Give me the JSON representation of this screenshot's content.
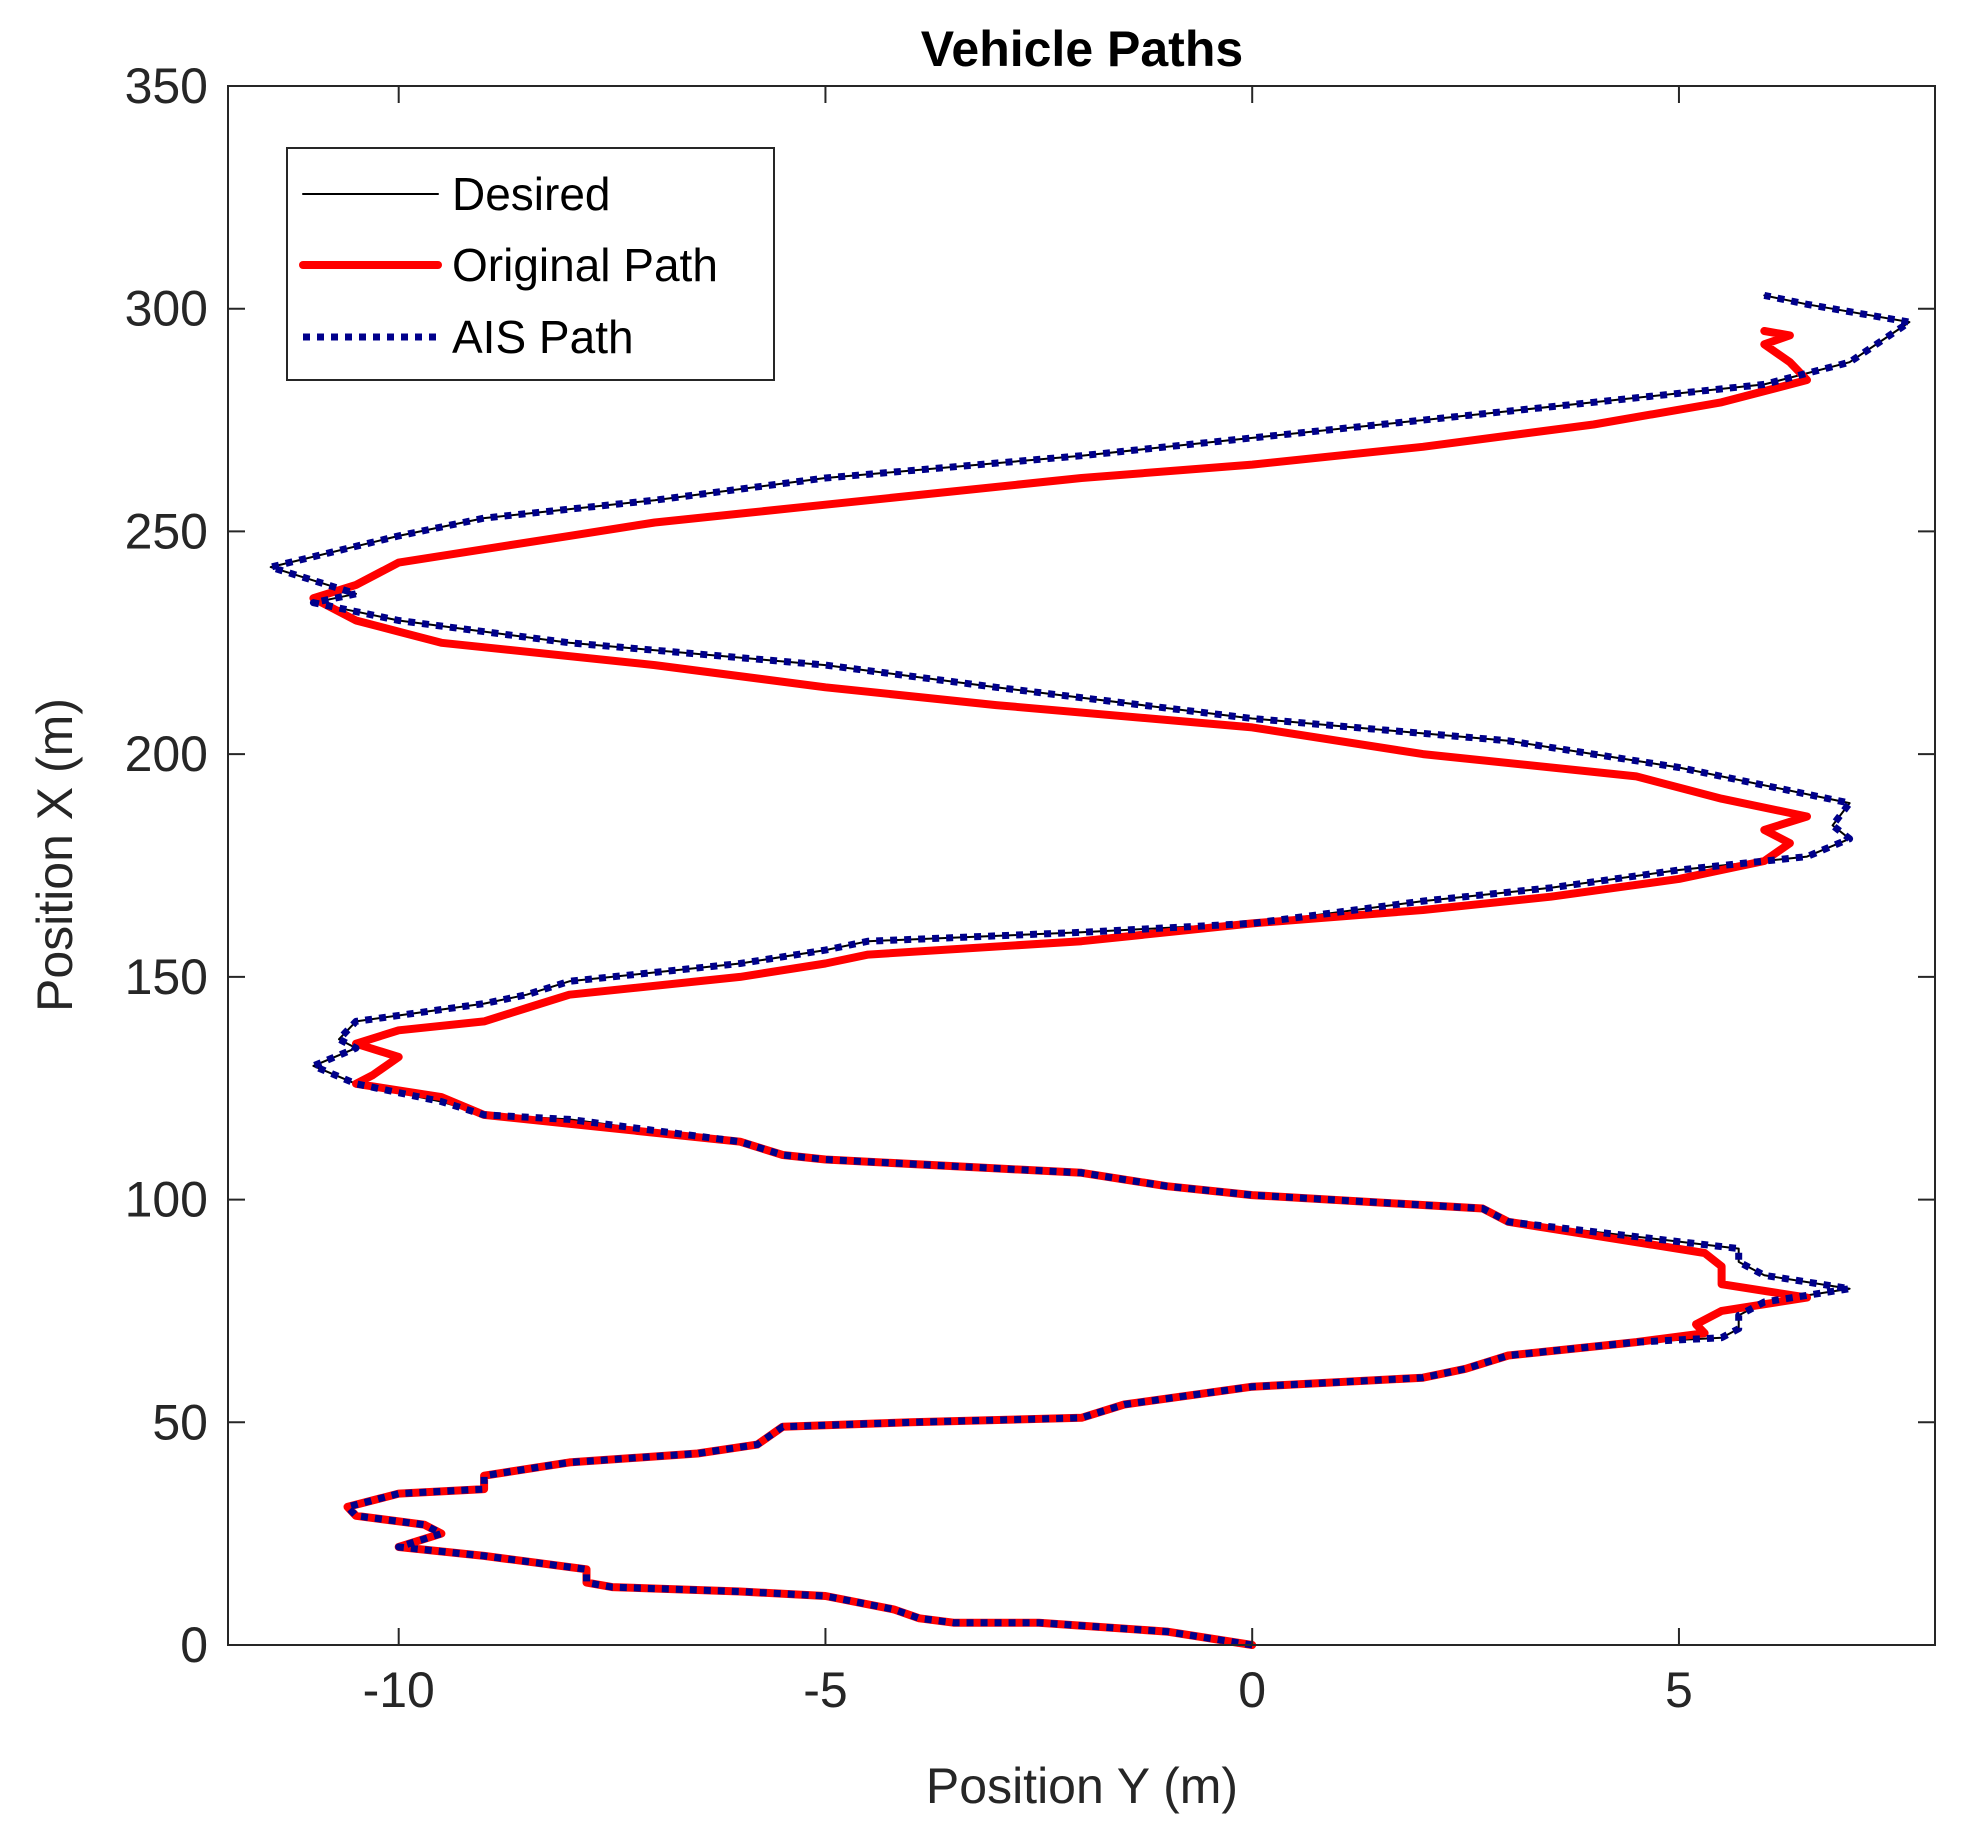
{
  "chart_data": {
    "type": "line",
    "title": "Vehicle Paths",
    "xlabel": "Position Y (m)",
    "ylabel": "Position X (m)",
    "xlim": [
      -12,
      8
    ],
    "ylim": [
      0,
      350
    ],
    "xticks": [
      -10,
      -5,
      0,
      5
    ],
    "yticks": [
      0,
      50,
      100,
      150,
      200,
      250,
      300,
      350
    ],
    "grid": false,
    "legend_position": "top-left",
    "series": [
      {
        "name": "Desired",
        "color": "#000000",
        "style": "solid-thin",
        "points": [
          [
            0.0,
            0
          ],
          [
            -1.0,
            3
          ],
          [
            -2.5,
            5
          ],
          [
            -3.5,
            5
          ],
          [
            -3.9,
            6
          ],
          [
            -4.2,
            8
          ],
          [
            -5.0,
            11
          ],
          [
            -6.0,
            12
          ],
          [
            -7.5,
            13
          ],
          [
            -7.8,
            14
          ],
          [
            -7.8,
            17
          ],
          [
            -9.0,
            20
          ],
          [
            -10.0,
            22
          ],
          [
            -9.5,
            25
          ],
          [
            -9.7,
            27
          ],
          [
            -10.5,
            29
          ],
          [
            -10.6,
            31
          ],
          [
            -10.0,
            34
          ],
          [
            -9.0,
            35
          ],
          [
            -9.0,
            38
          ],
          [
            -8.0,
            41
          ],
          [
            -6.5,
            43
          ],
          [
            -5.8,
            45
          ],
          [
            -5.5,
            49
          ],
          [
            -4.0,
            50
          ],
          [
            -2.0,
            51
          ],
          [
            -1.5,
            54
          ],
          [
            0.0,
            58
          ],
          [
            2.0,
            60
          ],
          [
            2.5,
            62
          ],
          [
            3.0,
            65
          ],
          [
            4.5,
            68
          ],
          [
            5.5,
            69
          ],
          [
            5.7,
            71
          ],
          [
            5.7,
            74
          ],
          [
            6.0,
            77
          ],
          [
            7.0,
            80
          ],
          [
            6.0,
            83
          ],
          [
            5.7,
            86
          ],
          [
            5.7,
            89
          ],
          [
            3.0,
            95
          ],
          [
            2.7,
            98
          ],
          [
            0.0,
            101
          ],
          [
            -1.0,
            103
          ],
          [
            -2.0,
            106
          ],
          [
            -3.0,
            107
          ],
          [
            -5.0,
            109
          ],
          [
            -5.5,
            110
          ],
          [
            -6.0,
            113
          ],
          [
            -8.0,
            118
          ],
          [
            -9.0,
            119
          ],
          [
            -9.5,
            122
          ],
          [
            -10.5,
            126
          ],
          [
            -11.0,
            130
          ],
          [
            -10.5,
            134
          ],
          [
            -10.7,
            136
          ],
          [
            -10.5,
            140
          ],
          [
            -9.0,
            144
          ],
          [
            -8.5,
            146
          ],
          [
            -8.0,
            149
          ],
          [
            -6.0,
            153
          ],
          [
            -5.0,
            156
          ],
          [
            -4.5,
            158
          ],
          [
            -2.0,
            160
          ],
          [
            0.0,
            162
          ],
          [
            2.0,
            167
          ],
          [
            3.5,
            170
          ],
          [
            5.0,
            174
          ],
          [
            6.5,
            177
          ],
          [
            7.0,
            181
          ],
          [
            6.8,
            184
          ],
          [
            7.0,
            189
          ],
          [
            5.0,
            197
          ],
          [
            3.0,
            203
          ],
          [
            0.0,
            208
          ],
          [
            -3.0,
            215
          ],
          [
            -5.0,
            220
          ],
          [
            -8.0,
            225
          ],
          [
            -10.0,
            230
          ],
          [
            -11.0,
            234
          ],
          [
            -10.5,
            236
          ],
          [
            -11.5,
            242
          ],
          [
            -10.0,
            249
          ],
          [
            -9.0,
            253
          ],
          [
            -7.0,
            257
          ],
          [
            -5.0,
            262
          ],
          [
            -2.0,
            267
          ],
          [
            0.0,
            271
          ],
          [
            2.0,
            275
          ],
          [
            4.0,
            279
          ],
          [
            6.0,
            283
          ],
          [
            7.0,
            288
          ],
          [
            7.7,
            297
          ],
          [
            6.5,
            301
          ],
          [
            6.0,
            303
          ]
        ]
      },
      {
        "name": "Original Path",
        "color": "#ff0000",
        "style": "solid-thick",
        "points": [
          [
            0.0,
            0
          ],
          [
            -1.0,
            3
          ],
          [
            -2.5,
            5
          ],
          [
            -3.5,
            5
          ],
          [
            -3.9,
            6
          ],
          [
            -4.2,
            8
          ],
          [
            -5.0,
            11
          ],
          [
            -6.0,
            12
          ],
          [
            -7.5,
            13
          ],
          [
            -7.8,
            14
          ],
          [
            -7.8,
            17
          ],
          [
            -9.0,
            20
          ],
          [
            -10.0,
            22
          ],
          [
            -9.5,
            25
          ],
          [
            -9.7,
            27
          ],
          [
            -10.5,
            29
          ],
          [
            -10.6,
            31
          ],
          [
            -10.0,
            34
          ],
          [
            -9.0,
            35
          ],
          [
            -9.0,
            38
          ],
          [
            -8.0,
            41
          ],
          [
            -6.5,
            43
          ],
          [
            -5.8,
            45
          ],
          [
            -5.5,
            49
          ],
          [
            -4.0,
            50
          ],
          [
            -2.0,
            51
          ],
          [
            -1.5,
            54
          ],
          [
            0.0,
            58
          ],
          [
            2.0,
            60
          ],
          [
            2.5,
            62
          ],
          [
            3.0,
            65
          ],
          [
            4.5,
            68
          ],
          [
            5.3,
            70
          ],
          [
            5.2,
            72
          ],
          [
            5.5,
            75
          ],
          [
            6.5,
            78
          ],
          [
            5.5,
            81
          ],
          [
            5.5,
            85
          ],
          [
            5.3,
            88
          ],
          [
            3.0,
            95
          ],
          [
            2.7,
            98
          ],
          [
            0.0,
            101
          ],
          [
            -1.0,
            103
          ],
          [
            -2.0,
            106
          ],
          [
            -3.0,
            107
          ],
          [
            -5.0,
            109
          ],
          [
            -5.5,
            110
          ],
          [
            -6.0,
            113
          ],
          [
            -8.0,
            117
          ],
          [
            -9.0,
            119
          ],
          [
            -9.5,
            123
          ],
          [
            -10.5,
            126
          ],
          [
            -10.3,
            128
          ],
          [
            -10.0,
            132
          ],
          [
            -10.5,
            135
          ],
          [
            -10.0,
            138
          ],
          [
            -9.0,
            140
          ],
          [
            -8.5,
            143
          ],
          [
            -8.0,
            146
          ],
          [
            -6.0,
            150
          ],
          [
            -5.0,
            153
          ],
          [
            -4.5,
            155
          ],
          [
            -2.0,
            158
          ],
          [
            0.0,
            162
          ],
          [
            2.0,
            165
          ],
          [
            3.5,
            168
          ],
          [
            5.0,
            172
          ],
          [
            6.0,
            176
          ],
          [
            6.3,
            180
          ],
          [
            6.0,
            183
          ],
          [
            6.5,
            186
          ],
          [
            5.5,
            190
          ],
          [
            4.5,
            195
          ],
          [
            2.0,
            200
          ],
          [
            0.0,
            206
          ],
          [
            -3.0,
            211
          ],
          [
            -5.0,
            215
          ],
          [
            -7.0,
            220
          ],
          [
            -9.5,
            225
          ],
          [
            -10.5,
            230
          ],
          [
            -11.0,
            235
          ],
          [
            -10.5,
            238
          ],
          [
            -10.0,
            243
          ],
          [
            -9.0,
            246
          ],
          [
            -8.0,
            249
          ],
          [
            -7.0,
            252
          ],
          [
            -5.0,
            256
          ],
          [
            -2.0,
            262
          ],
          [
            0.0,
            265
          ],
          [
            2.0,
            269
          ],
          [
            4.0,
            274
          ],
          [
            5.5,
            279
          ],
          [
            6.5,
            284
          ],
          [
            6.3,
            288
          ],
          [
            6.0,
            292
          ],
          [
            6.3,
            294
          ],
          [
            6.0,
            295
          ]
        ]
      },
      {
        "name": "AIS Path",
        "color": "#00008b",
        "style": "dotted",
        "points": [
          [
            0.0,
            0
          ],
          [
            -1.0,
            3
          ],
          [
            -2.5,
            5
          ],
          [
            -3.5,
            5
          ],
          [
            -3.9,
            6
          ],
          [
            -4.2,
            8
          ],
          [
            -5.0,
            11
          ],
          [
            -6.0,
            12
          ],
          [
            -7.5,
            13
          ],
          [
            -7.8,
            14
          ],
          [
            -7.8,
            17
          ],
          [
            -9.0,
            20
          ],
          [
            -10.0,
            22
          ],
          [
            -9.5,
            25
          ],
          [
            -9.7,
            27
          ],
          [
            -10.5,
            29
          ],
          [
            -10.6,
            31
          ],
          [
            -10.0,
            34
          ],
          [
            -9.0,
            35
          ],
          [
            -9.0,
            38
          ],
          [
            -8.0,
            41
          ],
          [
            -6.5,
            43
          ],
          [
            -5.8,
            45
          ],
          [
            -5.5,
            49
          ],
          [
            -4.0,
            50
          ],
          [
            -2.0,
            51
          ],
          [
            -1.5,
            54
          ],
          [
            0.0,
            58
          ],
          [
            2.0,
            60
          ],
          [
            2.5,
            62
          ],
          [
            3.0,
            65
          ],
          [
            4.5,
            68
          ],
          [
            5.5,
            69
          ],
          [
            5.7,
            71
          ],
          [
            5.7,
            74
          ],
          [
            6.0,
            77
          ],
          [
            7.0,
            80
          ],
          [
            6.0,
            83
          ],
          [
            5.7,
            86
          ],
          [
            5.7,
            89
          ],
          [
            3.0,
            95
          ],
          [
            2.7,
            98
          ],
          [
            0.0,
            101
          ],
          [
            -1.0,
            103
          ],
          [
            -2.0,
            106
          ],
          [
            -3.0,
            107
          ],
          [
            -5.0,
            109
          ],
          [
            -5.5,
            110
          ],
          [
            -6.0,
            113
          ],
          [
            -8.0,
            118
          ],
          [
            -9.0,
            119
          ],
          [
            -9.5,
            122
          ],
          [
            -10.5,
            126
          ],
          [
            -11.0,
            130
          ],
          [
            -10.5,
            134
          ],
          [
            -10.7,
            136
          ],
          [
            -10.5,
            140
          ],
          [
            -9.0,
            144
          ],
          [
            -8.5,
            146
          ],
          [
            -8.0,
            149
          ],
          [
            -6.0,
            153
          ],
          [
            -5.0,
            156
          ],
          [
            -4.5,
            158
          ],
          [
            -2.0,
            160
          ],
          [
            0.0,
            162
          ],
          [
            2.0,
            167
          ],
          [
            3.5,
            170
          ],
          [
            5.0,
            174
          ],
          [
            6.5,
            177
          ],
          [
            7.0,
            181
          ],
          [
            6.8,
            184
          ],
          [
            7.0,
            189
          ],
          [
            5.0,
            197
          ],
          [
            3.0,
            203
          ],
          [
            0.0,
            208
          ],
          [
            -3.0,
            215
          ],
          [
            -5.0,
            220
          ],
          [
            -8.0,
            225
          ],
          [
            -10.0,
            230
          ],
          [
            -11.0,
            234
          ],
          [
            -10.5,
            236
          ],
          [
            -11.5,
            242
          ],
          [
            -10.0,
            249
          ],
          [
            -9.0,
            253
          ],
          [
            -7.0,
            257
          ],
          [
            -5.0,
            262
          ],
          [
            -2.0,
            267
          ],
          [
            0.0,
            271
          ],
          [
            2.0,
            275
          ],
          [
            4.0,
            279
          ],
          [
            6.0,
            283
          ],
          [
            7.0,
            288
          ],
          [
            7.7,
            297
          ],
          [
            6.5,
            301
          ],
          [
            6.0,
            303
          ]
        ]
      }
    ]
  }
}
